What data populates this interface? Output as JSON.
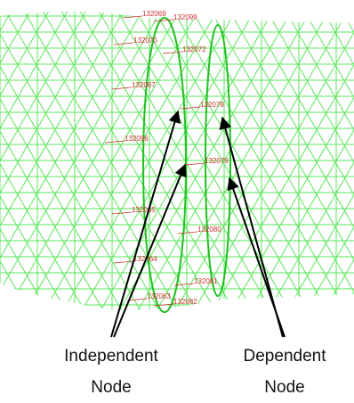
{
  "nodes": [
    {
      "label": "132069"
    },
    {
      "label": "132099"
    },
    {
      "label": "132070"
    },
    {
      "label": "132072"
    },
    {
      "label": "132067"
    },
    {
      "label": "132078"
    },
    {
      "label": "132096"
    },
    {
      "label": "132079"
    },
    {
      "label": "132065"
    },
    {
      "label": "132080"
    },
    {
      "label": "132064"
    },
    {
      "label": "132081"
    },
    {
      "label": "132063"
    },
    {
      "label": "132082"
    }
  ],
  "captions": {
    "independent": {
      "lines": [
        "Independent",
        "Node"
      ]
    },
    "dependent": {
      "lines": [
        "Dependent",
        "Node"
      ]
    }
  }
}
